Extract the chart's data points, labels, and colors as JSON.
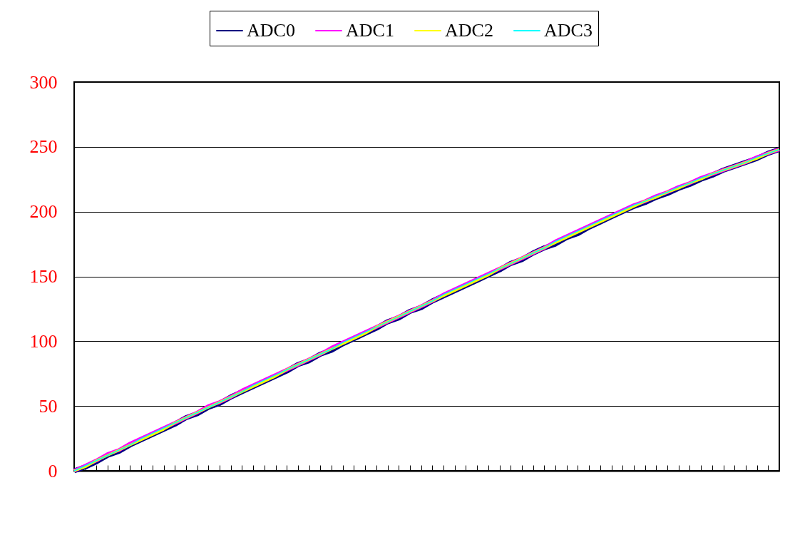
{
  "chart_data": {
    "type": "line",
    "categories": [
      null,
      null,
      null,
      null,
      null,
      null,
      null,
      null,
      null,
      null,
      null,
      null,
      null,
      null,
      null,
      null,
      null,
      null,
      null,
      null,
      null,
      null,
      null,
      null,
      null,
      null,
      null,
      null,
      null,
      null,
      null,
      null,
      null,
      null,
      null,
      null,
      null,
      null,
      null,
      null,
      null,
      null,
      null,
      null,
      null,
      null,
      null,
      null,
      null,
      null,
      null,
      null,
      null,
      null,
      null,
      null,
      null,
      null,
      null,
      null,
      null,
      null,
      null,
      null
    ],
    "series": [
      {
        "name": "ADC0",
        "color": "#000080",
        "values": [
          0,
          3,
          7,
          12,
          15,
          20,
          24,
          28,
          32,
          36,
          41,
          44,
          49,
          52,
          57,
          61,
          65,
          69,
          73,
          77,
          82,
          85,
          90,
          93,
          98,
          102,
          106,
          110,
          115,
          118,
          123,
          126,
          131,
          135,
          139,
          143,
          147,
          151,
          155,
          160,
          163,
          168,
          172,
          175,
          180,
          183,
          188,
          192,
          196,
          200,
          204,
          207,
          211,
          214,
          218,
          221,
          225,
          228,
          232,
          235,
          238,
          241,
          245,
          248
        ]
      },
      {
        "name": "ADC1",
        "color": "#ff00ff",
        "values": [
          0,
          4,
          8,
          13,
          16,
          21,
          25,
          29,
          33,
          37,
          41,
          45,
          50,
          53,
          57,
          62,
          66,
          70,
          74,
          78,
          82,
          86,
          90,
          95,
          99,
          103,
          107,
          111,
          115,
          119,
          123,
          127,
          131,
          136,
          140,
          144,
          148,
          152,
          156,
          160,
          164,
          168,
          172,
          177,
          181,
          185,
          189,
          193,
          197,
          201,
          205,
          208,
          212,
          215,
          219,
          222,
          226,
          229,
          232,
          235,
          238,
          242,
          245,
          248
        ]
      },
      {
        "name": "ADC2",
        "color": "#ffff00",
        "values": [
          0,
          3,
          8,
          12,
          16,
          20,
          24,
          28,
          32,
          37,
          41,
          45,
          49,
          53,
          57,
          61,
          65,
          69,
          73,
          78,
          82,
          86,
          90,
          94,
          98,
          102,
          106,
          111,
          115,
          119,
          123,
          127,
          131,
          135,
          139,
          143,
          147,
          151,
          156,
          160,
          164,
          168,
          172,
          176,
          180,
          184,
          188,
          192,
          196,
          200,
          204,
          208,
          211,
          215,
          218,
          222,
          225,
          229,
          232,
          235,
          238,
          241,
          245,
          248
        ]
      },
      {
        "name": "ADC3",
        "color": "#00ffff",
        "values": [
          0,
          4,
          8,
          12,
          16,
          20,
          25,
          29,
          33,
          37,
          41,
          45,
          49,
          53,
          57,
          61,
          66,
          70,
          74,
          78,
          82,
          86,
          90,
          94,
          99,
          103,
          107,
          111,
          115,
          119,
          123,
          127,
          131,
          136,
          140,
          144,
          148,
          152,
          156,
          160,
          164,
          168,
          172,
          177,
          181,
          185,
          189,
          193,
          197,
          201,
          205,
          208,
          212,
          215,
          219,
          222,
          226,
          229,
          232,
          235,
          238,
          242,
          245,
          248
        ]
      }
    ],
    "ylim": [
      0,
      300
    ],
    "yticks": [
      0,
      50,
      100,
      150,
      200,
      250,
      300
    ],
    "grid": "y",
    "legend": "top",
    "tick_labels": "y",
    "marker": "none",
    "line_style": "solid"
  }
}
